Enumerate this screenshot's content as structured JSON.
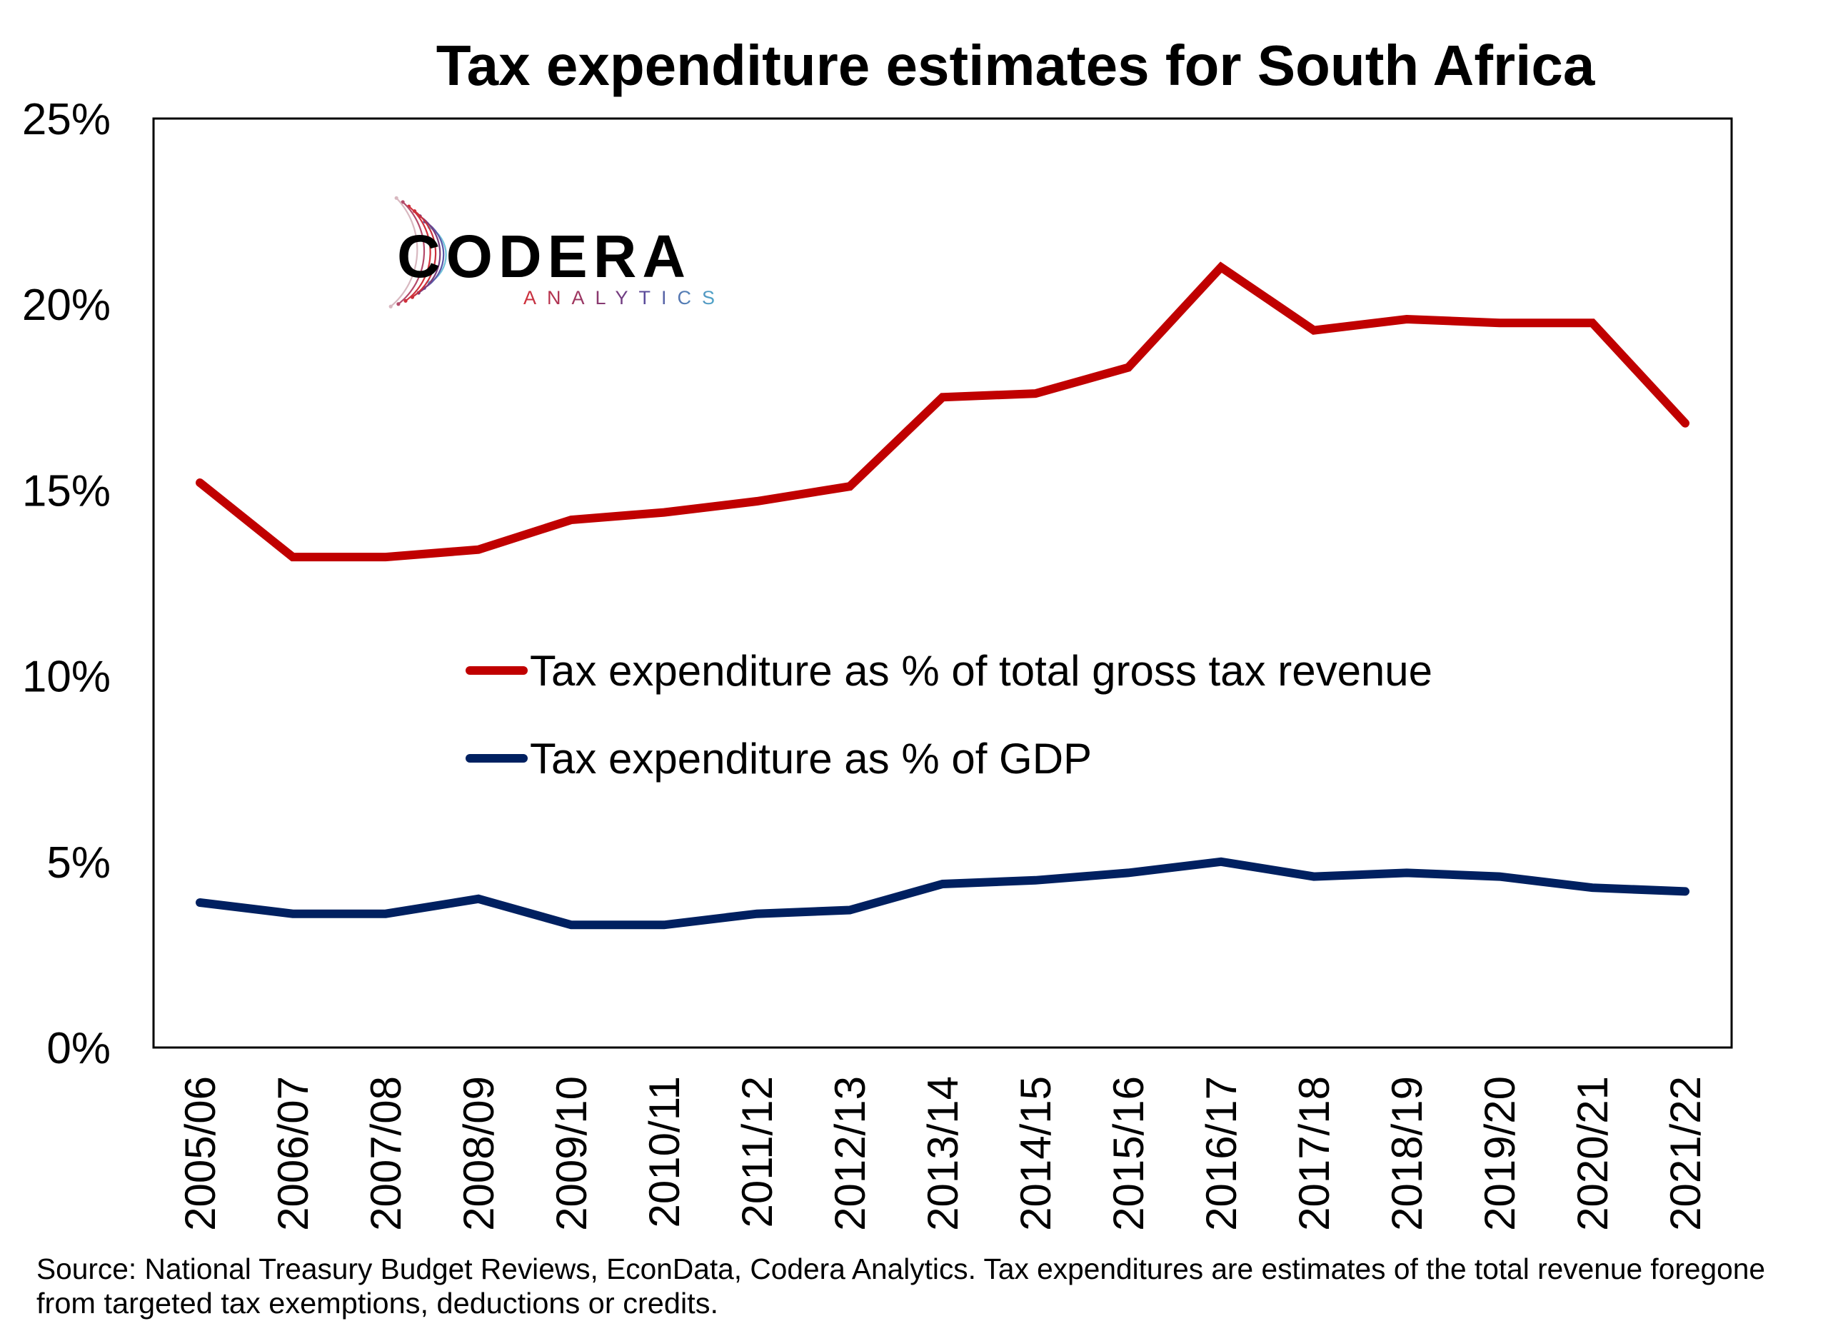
{
  "chart_data": {
    "type": "line",
    "title": "Tax expenditure estimates for South Africa",
    "xlabel": "",
    "ylabel": "",
    "ylim": [
      0,
      25
    ],
    "yticks": [
      0,
      5,
      10,
      15,
      20,
      25
    ],
    "ytick_labels": [
      "0%",
      "5%",
      "10%",
      "15%",
      "20%",
      "25%"
    ],
    "grid": false,
    "legend_position": "center",
    "categories": [
      "2005/06",
      "2006/07",
      "2007/08",
      "2008/09",
      "2009/10",
      "2010/11",
      "2011/12",
      "2012/13",
      "2013/14",
      "2014/15",
      "2015/16",
      "2016/17",
      "2017/18",
      "2018/19",
      "2019/20",
      "2020/21",
      "2021/22"
    ],
    "series": [
      {
        "name": "Tax expenditure as % of total gross tax revenue",
        "color": "#C00000",
        "values": [
          15.2,
          13.2,
          13.2,
          13.4,
          14.2,
          14.4,
          14.7,
          15.1,
          17.5,
          17.6,
          18.3,
          21.0,
          19.3,
          19.6,
          19.5,
          19.5,
          16.8
        ]
      },
      {
        "name": "Tax expenditure as % of GDP",
        "color": "#002060",
        "values": [
          3.9,
          3.6,
          3.6,
          4.0,
          3.3,
          3.3,
          3.6,
          3.7,
          4.4,
          4.5,
          4.7,
          5.0,
          4.6,
          4.7,
          4.6,
          4.3,
          4.2
        ]
      }
    ],
    "source_note": [
      "Source: National Treasury Budget Reviews, EconData, Codera Analytics. Tax expenditures are estimates of the total revenue foregone",
      "from targeted tax exemptions, deductions or credits."
    ]
  },
  "logo": {
    "name": "CODERA",
    "subtitle": "ANALYTICS",
    "icon": "circuit-arc-icon",
    "colors": {
      "red": "#D0303A",
      "purple": "#5A4A9A",
      "blue": "#4FB3D0"
    }
  }
}
